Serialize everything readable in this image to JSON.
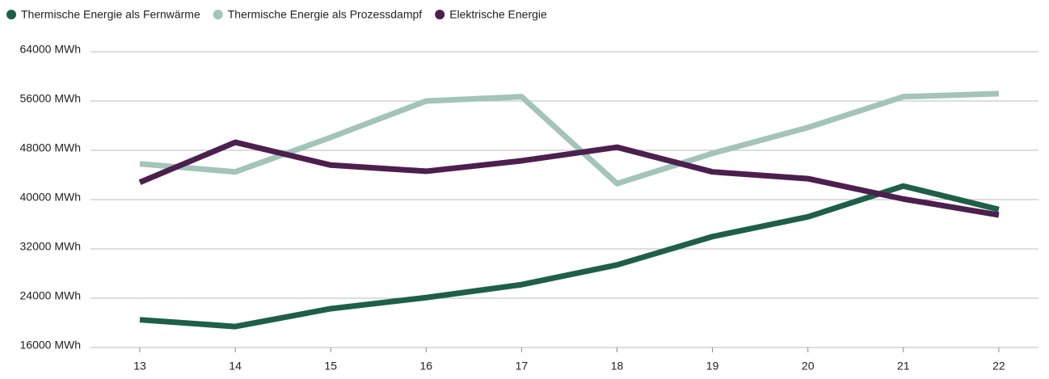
{
  "chart_data": {
    "type": "line",
    "categories": [
      "13",
      "14",
      "15",
      "16",
      "17",
      "18",
      "19",
      "20",
      "21",
      "22"
    ],
    "series": [
      {
        "name": "Thermische Energie als Fernwärme",
        "color": "#1e5f4a",
        "values": [
          20500,
          19400,
          22300,
          24100,
          26200,
          29400,
          34000,
          37200,
          42200,
          38400
        ]
      },
      {
        "name": "Thermische Energie als Prozessdampf",
        "color": "#a3c4b8",
        "values": [
          45800,
          44500,
          50100,
          56000,
          56700,
          42600,
          47500,
          51700,
          56700,
          57200
        ]
      },
      {
        "name": "Elektrische Energie",
        "color": "#4d1f4f",
        "values": [
          42800,
          49300,
          45600,
          44600,
          46300,
          48500,
          44500,
          43400,
          40100,
          37500
        ]
      }
    ],
    "ylim": [
      16000,
      64000
    ],
    "yticks": [
      {
        "value": 16000,
        "label": "16000 MWh"
      },
      {
        "value": 24000,
        "label": "24000 MWh"
      },
      {
        "value": 32000,
        "label": "32000 MWh"
      },
      {
        "value": 40000,
        "label": "40000 MWh"
      },
      {
        "value": 48000,
        "label": "48000 MWh"
      },
      {
        "value": 56000,
        "label": "56000 MWh"
      },
      {
        "value": 64000,
        "label": "64000 MWh"
      }
    ],
    "grid": true,
    "legend": "top-left"
  }
}
